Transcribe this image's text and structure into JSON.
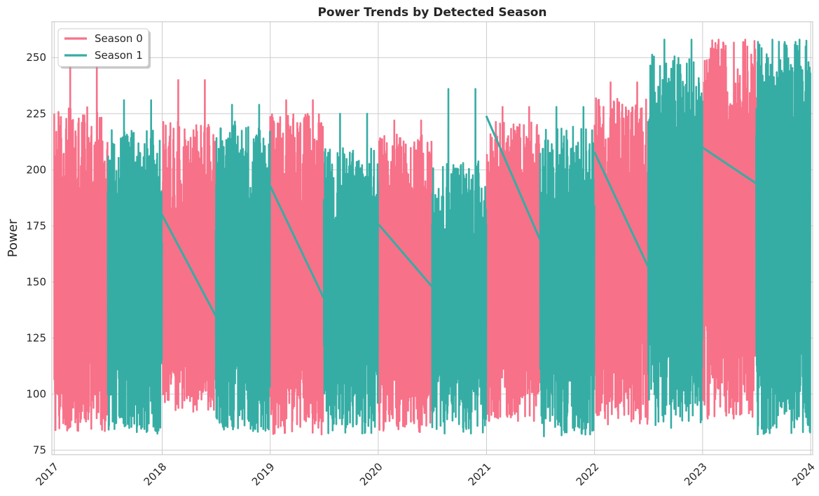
{
  "chart_data": {
    "type": "line",
    "title": "Power Trends by Detected Season",
    "xlabel": "",
    "ylabel": "Power",
    "xlim": [
      "2016-12-24",
      "2024-01-08"
    ],
    "ylim": [
      73,
      266
    ],
    "x_ticks": [
      "2017",
      "2018",
      "2019",
      "2020",
      "2021",
      "2022",
      "2023",
      "2024"
    ],
    "y_ticks": [
      75,
      100,
      125,
      150,
      175,
      200,
      225,
      250
    ],
    "grid": true,
    "legend_position": "top-left",
    "series": [
      {
        "name": "Season 0",
        "color": "#f77189",
        "segments": [
          {
            "start": "2017-01-01",
            "end": "2017-06-30",
            "low": 83,
            "high": 228,
            "spike_high": 250
          },
          {
            "start": "2018-01-01",
            "end": "2018-06-30",
            "low": 92,
            "high": 222,
            "spike_high": 240
          },
          {
            "start": "2019-01-01",
            "end": "2019-06-30",
            "low": 82,
            "high": 225,
            "spike_high": 231
          },
          {
            "start": "2020-01-01",
            "end": "2020-06-30",
            "low": 83,
            "high": 216,
            "spike_high": 222
          },
          {
            "start": "2021-01-01",
            "end": "2021-06-30",
            "low": 88,
            "high": 222,
            "spike_high": 228
          },
          {
            "start": "2022-01-01",
            "end": "2022-06-30",
            "low": 86,
            "high": 232,
            "spike_high": 239
          },
          {
            "start": "2023-01-01",
            "end": "2023-06-30",
            "low": 89,
            "high": 258,
            "spike_high": 258
          }
        ]
      },
      {
        "name": "Season 1",
        "color": "#36ada4",
        "segments": [
          {
            "start": "2017-07-01",
            "end": "2017-12-31",
            "low": 82,
            "high": 218,
            "spike_high": 231
          },
          {
            "start": "2018-07-01",
            "end": "2018-12-31",
            "low": 83,
            "high": 222,
            "spike_high": 229
          },
          {
            "start": "2019-07-01",
            "end": "2019-12-31",
            "low": 82,
            "high": 210,
            "spike_high": 225
          },
          {
            "start": "2020-07-01",
            "end": "2020-12-31",
            "low": 82,
            "high": 205,
            "spike_high": 236
          },
          {
            "start": "2021-07-01",
            "end": "2021-12-31",
            "low": 81,
            "high": 220,
            "spike_high": 228
          },
          {
            "start": "2022-07-01",
            "end": "2022-12-31",
            "low": 85,
            "high": 252,
            "spike_high": 258
          },
          {
            "start": "2023-07-01",
            "end": "2023-12-31",
            "low": 82,
            "high": 258,
            "spike_high": 258
          }
        ],
        "connectors": [
          {
            "from": {
              "x": "2017-12-31",
              "y": 180
            },
            "to": {
              "x": "2018-06-30",
              "y": 135
            }
          },
          {
            "from": {
              "x": "2018-12-31",
              "y": 193
            },
            "to": {
              "x": "2019-06-30",
              "y": 143
            }
          },
          {
            "from": {
              "x": "2019-12-31",
              "y": 176
            },
            "to": {
              "x": "2020-06-30",
              "y": 148
            }
          },
          {
            "from": {
              "x": "2020-12-31",
              "y": 224
            },
            "to": {
              "x": "2021-06-30",
              "y": 169
            }
          },
          {
            "from": {
              "x": "2021-12-31",
              "y": 208
            },
            "to": {
              "x": "2022-06-30",
              "y": 157
            }
          },
          {
            "from": {
              "x": "2022-12-31",
              "y": 210
            },
            "to": {
              "x": "2023-06-30",
              "y": 194
            }
          }
        ]
      }
    ]
  }
}
